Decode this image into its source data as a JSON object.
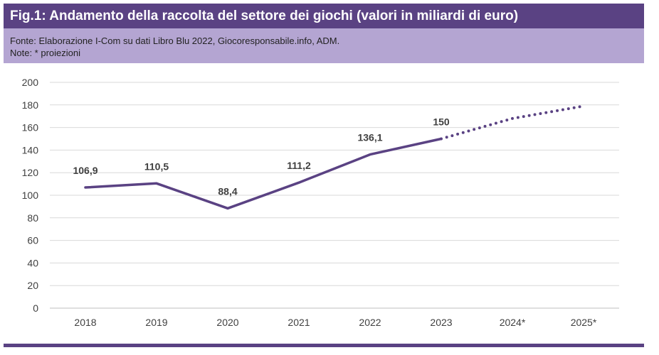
{
  "header": {
    "title": "Fig.1: Andamento della raccolta del settore dei giochi (valori in miliardi di euro)",
    "source": "Fonte: Elaborazione I-Com su dati Libro Blu 2022, Giocoresponsabile.info, ADM.",
    "note": "Note: * proiezioni"
  },
  "colors": {
    "title_bg": "#5a4283",
    "source_bg": "#b4a5d2",
    "line": "#5a4283",
    "grid": "#d9d9d9"
  },
  "chart_data": {
    "type": "line",
    "title": "Andamento della raccolta del settore dei giochi",
    "xlabel": "",
    "ylabel": "miliardi di euro",
    "ylim": [
      0,
      200
    ],
    "yticks": [
      0,
      20,
      40,
      60,
      80,
      100,
      120,
      140,
      160,
      180,
      200
    ],
    "grid": true,
    "categories": [
      "2018",
      "2019",
      "2020",
      "2021",
      "2022",
      "2023",
      "2024*",
      "2025*"
    ],
    "series": [
      {
        "name": "Raccolta",
        "values": [
          106.9,
          110.5,
          88.4,
          111.2,
          136.1,
          150,
          null,
          null
        ],
        "labels": [
          "106,9",
          "110,5",
          "88,4",
          "111,2",
          "136,1",
          "150",
          "",
          ""
        ],
        "style": "solid"
      },
      {
        "name": "Proiezioni",
        "values": [
          null,
          null,
          null,
          null,
          null,
          150,
          168,
          179
        ],
        "style": "dotted"
      }
    ]
  }
}
